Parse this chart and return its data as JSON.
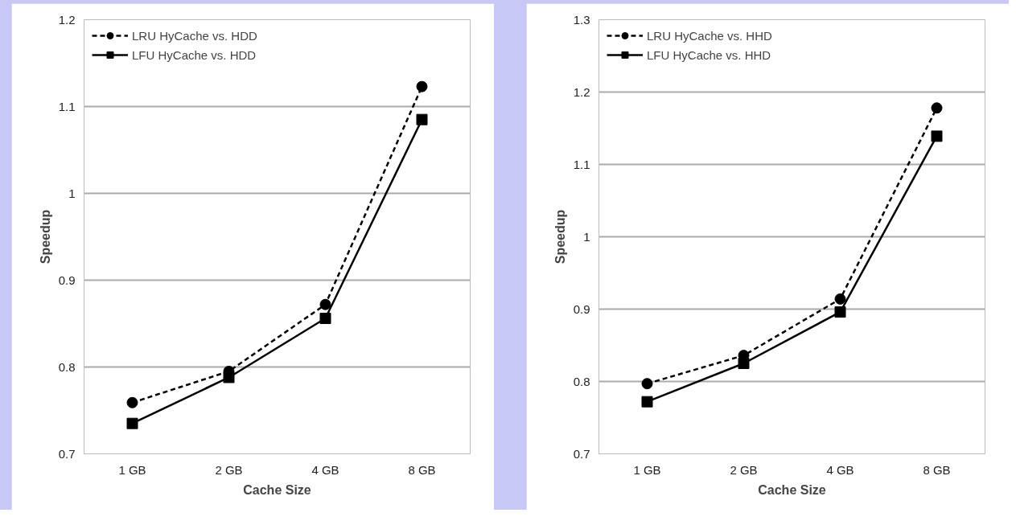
{
  "chart_data": [
    {
      "type": "line",
      "xlabel": "Cache Size",
      "ylabel": "Speedup",
      "categories": [
        "1 GB",
        "2 GB",
        "4 GB",
        "8 GB"
      ],
      "ylim": [
        0.7,
        1.2
      ],
      "yticks": [
        {
          "value": 0.7,
          "label": "0.7"
        },
        {
          "value": 0.8,
          "label": "0.8"
        },
        {
          "value": 0.9,
          "label": "0.9"
        },
        {
          "value": 1.0,
          "label": "1"
        },
        {
          "value": 1.1,
          "label": "1.1"
        },
        {
          "value": 1.2,
          "label": "1.2"
        }
      ],
      "grid": "y",
      "legend": "top left",
      "series": [
        {
          "name": "LRU HyCache vs. HDD",
          "color": "#000000",
          "marker": "circle",
          "line_style": "dashed",
          "values": [
            0.759,
            0.795,
            0.872,
            1.123
          ]
        },
        {
          "name": "LFU HyCache vs. HDD",
          "color": "#000000",
          "marker": "square",
          "line_style": "solid",
          "values": [
            0.735,
            0.788,
            0.856,
            1.085
          ]
        }
      ]
    },
    {
      "type": "line",
      "xlabel": "Cache Size",
      "ylabel": "Speedup",
      "categories": [
        "1 GB",
        "2 GB",
        "4 GB",
        "8 GB"
      ],
      "ylim": [
        0.7,
        1.3
      ],
      "yticks": [
        {
          "value": 0.7,
          "label": "0.7"
        },
        {
          "value": 0.8,
          "label": "0.8"
        },
        {
          "value": 0.9,
          "label": "0.9"
        },
        {
          "value": 1.0,
          "label": "1"
        },
        {
          "value": 1.1,
          "label": "1.1"
        },
        {
          "value": 1.2,
          "label": "1.2"
        },
        {
          "value": 1.3,
          "label": "1.3"
        }
      ],
      "grid": "y",
      "legend": "top left",
      "series": [
        {
          "name": "LRU HyCache vs. HHD",
          "color": "#000000",
          "marker": "circle",
          "line_style": "dashed",
          "values": [
            0.797,
            0.836,
            0.914,
            1.178
          ]
        },
        {
          "name": "LFU HyCache vs. HHD",
          "color": "#000000",
          "marker": "square",
          "line_style": "solid",
          "values": [
            0.772,
            0.825,
            0.896,
            1.139
          ]
        }
      ]
    }
  ]
}
